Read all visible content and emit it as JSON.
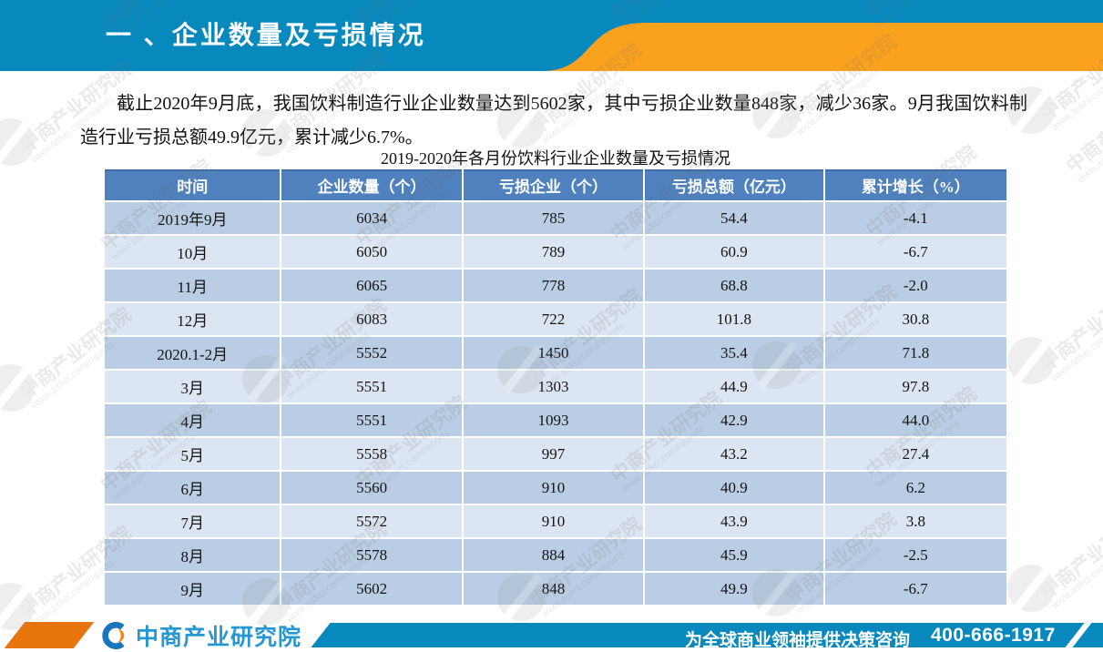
{
  "banner": {
    "title": "一 、企业数量及亏损情况"
  },
  "body": {
    "paragraph": "截止2020年9月底，我国饮料制造行业企业数量达到5602家，其中亏损企业数量848家，减少36家。9月我国饮料制造行业亏损总额49.9亿元，累计减少6.7%。"
  },
  "table": {
    "caption": "2019-2020年各月份饮料行业企业数量及亏损情况",
    "columns": [
      "时间",
      "企业数量（个）",
      "亏损企业（个）",
      "亏损总额（亿元）",
      "累计增长（%）"
    ],
    "rows": [
      [
        "2019年9月",
        "6034",
        "785",
        "54.4",
        "-4.1"
      ],
      [
        "10月",
        "6050",
        "789",
        "60.9",
        "-6.7"
      ],
      [
        "11月",
        "6065",
        "778",
        "68.8",
        "-2.0"
      ],
      [
        "12月",
        "6083",
        "722",
        "101.8",
        "30.8"
      ],
      [
        "2020.1-2月",
        "5552",
        "1450",
        "35.4",
        "71.8"
      ],
      [
        "3月",
        "5551",
        "1303",
        "44.9",
        "97.8"
      ],
      [
        "4月",
        "5551",
        "1093",
        "42.9",
        "44.0"
      ],
      [
        "5月",
        "5558",
        "997",
        "43.2",
        "27.4"
      ],
      [
        "6月",
        "5560",
        "910",
        "40.9",
        "6.2"
      ],
      [
        "7月",
        "5572",
        "910",
        "43.9",
        "3.8"
      ],
      [
        "8月",
        "5578",
        "884",
        "45.9",
        "-2.5"
      ],
      [
        "9月",
        "5602",
        "848",
        "49.9",
        "-6.7"
      ]
    ]
  },
  "watermark": {
    "line1": "中商产业研究院",
    "line2": "www.askci.com/reports"
  },
  "footer": {
    "company": "中商产业研究院",
    "slogan": "为全球商业领袖提供决策咨询",
    "phone": "400-666-1917"
  },
  "colors": {
    "banner_blue": "#0889BE",
    "banner_orange": "#FAA21E",
    "table_header": "#4E81BD",
    "row_dark": "#B9CDE4",
    "row_light": "#DCE6F2",
    "footer_orange": "#E8740E",
    "logo_blue": "#2697D3"
  }
}
